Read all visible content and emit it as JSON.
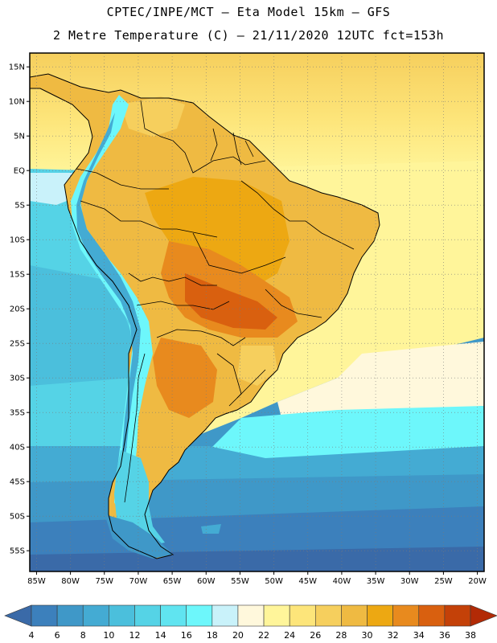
{
  "header": {
    "title_line1": "CPTEC/INPE/MCT –  Eta Model 15km – GFS",
    "title_line2": "2 Metre Temperature (C) – 21/11/2020 12UTC fct=153h"
  },
  "map": {
    "lon_range": [
      -86,
      -19
    ],
    "lat_range": [
      -58,
      17
    ],
    "lat_ticks": [
      {
        "value": 15,
        "label": "15N"
      },
      {
        "value": 10,
        "label": "10N"
      },
      {
        "value": 5,
        "label": "5N"
      },
      {
        "value": 0,
        "label": "EQ"
      },
      {
        "value": -5,
        "label": "5S"
      },
      {
        "value": -10,
        "label": "10S"
      },
      {
        "value": -15,
        "label": "15S"
      },
      {
        "value": -20,
        "label": "20S"
      },
      {
        "value": -25,
        "label": "25S"
      },
      {
        "value": -30,
        "label": "30S"
      },
      {
        "value": -35,
        "label": "35S"
      },
      {
        "value": -40,
        "label": "40S"
      },
      {
        "value": -45,
        "label": "45S"
      },
      {
        "value": -50,
        "label": "50S"
      },
      {
        "value": -55,
        "label": "55S"
      }
    ],
    "lon_ticks": [
      {
        "value": -85,
        "label": "85W"
      },
      {
        "value": -80,
        "label": "80W"
      },
      {
        "value": -75,
        "label": "75W"
      },
      {
        "value": -70,
        "label": "70W"
      },
      {
        "value": -65,
        "label": "65W"
      },
      {
        "value": -60,
        "label": "60W"
      },
      {
        "value": -55,
        "label": "55W"
      },
      {
        "value": -50,
        "label": "50W"
      },
      {
        "value": -45,
        "label": "45W"
      },
      {
        "value": -40,
        "label": "40W"
      },
      {
        "value": -35,
        "label": "35W"
      },
      {
        "value": -30,
        "label": "30W"
      },
      {
        "value": -25,
        "label": "25W"
      },
      {
        "value": -20,
        "label": "20W"
      }
    ],
    "grid": true
  },
  "colorbar": {
    "levels": [
      "4",
      "6",
      "8",
      "10",
      "12",
      "14",
      "16",
      "18",
      "20",
      "22",
      "24",
      "26",
      "28",
      "30",
      "32",
      "34",
      "36",
      "38"
    ],
    "colors": [
      "#3a6aa8",
      "#3c80bc",
      "#3f98c8",
      "#44abd3",
      "#4bbfdc",
      "#55d3e6",
      "#60e4f0",
      "#6df7fb",
      "#c9f2fa",
      "#fff8dc",
      "#fff59a",
      "#fde57a",
      "#f6cf5d",
      "#efba42",
      "#eda812",
      "#e88a1e",
      "#d9600f",
      "#c44108",
      "#b22a06"
    ]
  }
}
